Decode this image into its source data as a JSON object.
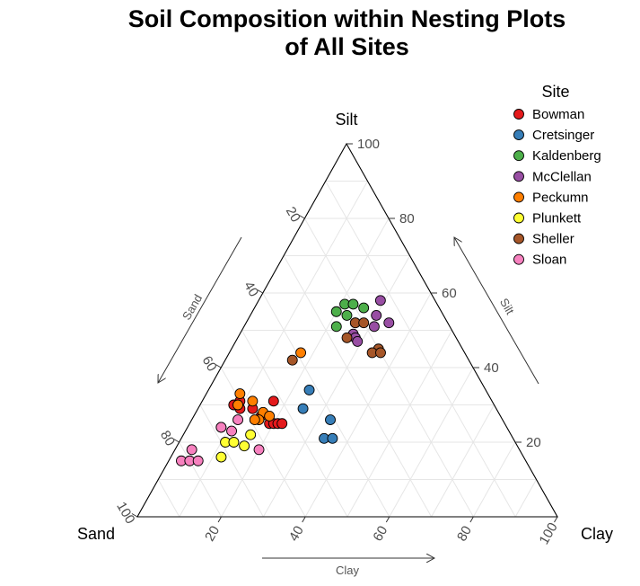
{
  "chart_data": {
    "type": "ternary-scatter",
    "title_lines": [
      "Soil Composition within Nesting Plots",
      "of All Sites"
    ],
    "vertices": {
      "top": "Silt",
      "left": "Sand",
      "right": "Clay"
    },
    "axis_titles": {
      "sand": "Sand",
      "silt": "Silt",
      "clay": "Clay"
    },
    "ticks": [
      20,
      40,
      60,
      80,
      100
    ],
    "grid": true,
    "legend": {
      "title": "Site",
      "position": "top-right"
    },
    "series": [
      {
        "name": "Bowman",
        "color": "#E41A1C",
        "points": [
          {
            "sand": 62,
            "silt": 30,
            "clay": 8
          },
          {
            "sand": 60,
            "silt": 31,
            "clay": 9
          },
          {
            "sand": 61,
            "silt": 29,
            "clay": 10
          },
          {
            "sand": 58,
            "silt": 29,
            "clay": 13
          },
          {
            "sand": 57,
            "silt": 27,
            "clay": 16
          },
          {
            "sand": 56,
            "silt": 25,
            "clay": 19
          },
          {
            "sand": 55,
            "silt": 25,
            "clay": 20
          },
          {
            "sand": 54,
            "silt": 25,
            "clay": 21
          },
          {
            "sand": 53,
            "silt": 25,
            "clay": 22
          },
          {
            "sand": 52,
            "silt": 31,
            "clay": 17
          }
        ]
      },
      {
        "name": "Cretsinger",
        "color": "#377EB8",
        "points": [
          {
            "sand": 42,
            "silt": 34,
            "clay": 24
          },
          {
            "sand": 46,
            "silt": 29,
            "clay": 25
          },
          {
            "sand": 45,
            "silt": 21,
            "clay": 34
          },
          {
            "sand": 41,
            "silt": 26,
            "clay": 33
          },
          {
            "sand": 43,
            "silt": 21,
            "clay": 36
          }
        ]
      },
      {
        "name": "Kaldenberg",
        "color": "#4DAF4A",
        "points": [
          {
            "sand": 22,
            "silt": 57,
            "clay": 21
          },
          {
            "sand": 20,
            "silt": 57,
            "clay": 23
          },
          {
            "sand": 18,
            "silt": 56,
            "clay": 26
          },
          {
            "sand": 25,
            "silt": 55,
            "clay": 20
          },
          {
            "sand": 23,
            "silt": 54,
            "clay": 23
          },
          {
            "sand": 27,
            "silt": 51,
            "clay": 22
          },
          {
            "sand": 22,
            "silt": 52,
            "clay": 26
          }
        ]
      },
      {
        "name": "McClellan",
        "color": "#984EA3",
        "points": [
          {
            "sand": 13,
            "silt": 58,
            "clay": 29
          },
          {
            "sand": 16,
            "silt": 54,
            "clay": 30
          },
          {
            "sand": 14,
            "silt": 52,
            "clay": 34
          },
          {
            "sand": 18,
            "silt": 51,
            "clay": 31
          },
          {
            "sand": 24,
            "silt": 49,
            "clay": 27
          },
          {
            "sand": 24,
            "silt": 48,
            "clay": 28
          },
          {
            "sand": 24,
            "silt": 47,
            "clay": 29
          }
        ]
      },
      {
        "name": "Peckumn",
        "color": "#FF7F00",
        "points": [
          {
            "sand": 59,
            "silt": 33,
            "clay": 8
          },
          {
            "sand": 61,
            "silt": 30,
            "clay": 9
          },
          {
            "sand": 57,
            "silt": 31,
            "clay": 12
          },
          {
            "sand": 56,
            "silt": 28,
            "clay": 16
          },
          {
            "sand": 58,
            "silt": 26,
            "clay": 16
          },
          {
            "sand": 55,
            "silt": 27,
            "clay": 18
          },
          {
            "sand": 59,
            "silt": 26,
            "clay": 15
          },
          {
            "sand": 39,
            "silt": 44,
            "clay": 17
          }
        ]
      },
      {
        "name": "Plunkett",
        "color": "#FFFF33",
        "points": [
          {
            "sand": 68,
            "silt": 24,
            "clay": 8
          },
          {
            "sand": 69,
            "silt": 20,
            "clay": 11
          },
          {
            "sand": 67,
            "silt": 20,
            "clay": 13
          },
          {
            "sand": 65,
            "silt": 19,
            "clay": 16
          },
          {
            "sand": 62,
            "silt": 22,
            "clay": 16
          },
          {
            "sand": 72,
            "silt": 16,
            "clay": 12
          }
        ]
      },
      {
        "name": "Sheller",
        "color": "#A65628",
        "points": [
          {
            "sand": 22,
            "silt": 52,
            "clay": 26
          },
          {
            "sand": 20,
            "silt": 52,
            "clay": 28
          },
          {
            "sand": 26,
            "silt": 48,
            "clay": 26
          },
          {
            "sand": 20,
            "silt": 45,
            "clay": 35
          },
          {
            "sand": 22,
            "silt": 44,
            "clay": 34
          },
          {
            "sand": 20,
            "silt": 44,
            "clay": 36
          },
          {
            "sand": 42,
            "silt": 42,
            "clay": 16
          }
        ]
      },
      {
        "name": "Sloan",
        "color": "#F781BF",
        "points": [
          {
            "sand": 82,
            "silt": 15,
            "clay": 3
          },
          {
            "sand": 80,
            "silt": 15,
            "clay": 5
          },
          {
            "sand": 78,
            "silt": 15,
            "clay": 7
          },
          {
            "sand": 78,
            "silt": 18,
            "clay": 4
          },
          {
            "sand": 68,
            "silt": 24,
            "clay": 8
          },
          {
            "sand": 63,
            "silt": 26,
            "clay": 11
          },
          {
            "sand": 62,
            "silt": 18,
            "clay": 20
          },
          {
            "sand": 66,
            "silt": 23,
            "clay": 11
          }
        ]
      }
    ]
  }
}
